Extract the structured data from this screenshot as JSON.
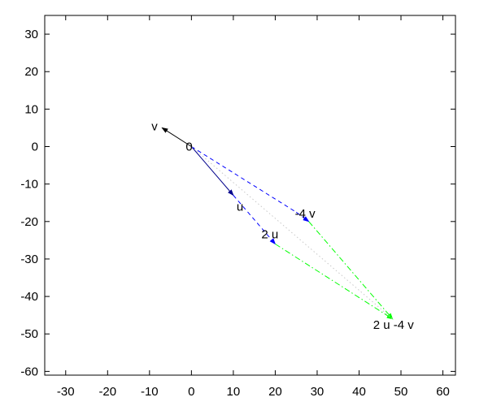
{
  "chart_data": {
    "type": "line",
    "title": "",
    "xlabel": "",
    "ylabel": "",
    "xlim": [
      -35,
      63
    ],
    "ylim": [
      -61,
      35
    ],
    "xticks": [
      -30,
      -20,
      -10,
      0,
      10,
      20,
      30,
      40,
      50,
      60
    ],
    "yticks": [
      30,
      20,
      10,
      0,
      -10,
      -20,
      -30,
      -40,
      -50,
      -60
    ],
    "grid": false,
    "legend": "none",
    "points": [
      {
        "label": "0",
        "x": 0,
        "y": 0
      },
      {
        "label": "v",
        "x": -7,
        "y": 5
      },
      {
        "label": "u",
        "x": 10,
        "y": -13
      },
      {
        "label": "2 u",
        "x": 20,
        "y": -26
      },
      {
        "label": "-4 v",
        "x": 28,
        "y": -20
      },
      {
        "label": "2 u -4 v",
        "x": 48,
        "y": -46
      }
    ],
    "series": [
      {
        "from": [
          0,
          0
        ],
        "to": [
          -7,
          5
        ],
        "style": "solid",
        "color": "#000000",
        "arrow": true
      },
      {
        "from": [
          0,
          0
        ],
        "to": [
          10,
          -13
        ],
        "style": "solid",
        "color": "#00008b",
        "arrow": true
      },
      {
        "from": [
          10,
          -13
        ],
        "to": [
          20,
          -26
        ],
        "style": "dashed",
        "color": "#0000ff",
        "arrow": true
      },
      {
        "from": [
          0,
          0
        ],
        "to": [
          25,
          -17.5
        ],
        "style": "dashed",
        "color": "#0000ff",
        "arrow": false
      },
      {
        "from": [
          25,
          -17.5
        ],
        "to": [
          28,
          -20
        ],
        "style": "dashed",
        "color": "#0000ff",
        "arrow": true
      },
      {
        "from": [
          28,
          -20
        ],
        "to": [
          48,
          -46
        ],
        "style": "dashdot",
        "color": "#00ff00",
        "arrow": true
      },
      {
        "from": [
          20,
          -26
        ],
        "to": [
          48,
          -46
        ],
        "style": "dashdot",
        "color": "#00ff00",
        "arrow": true
      },
      {
        "from": [
          0,
          0
        ],
        "to": [
          48,
          -46
        ],
        "style": "dotted",
        "color": "#c8c8c8",
        "arrow": false
      }
    ]
  }
}
